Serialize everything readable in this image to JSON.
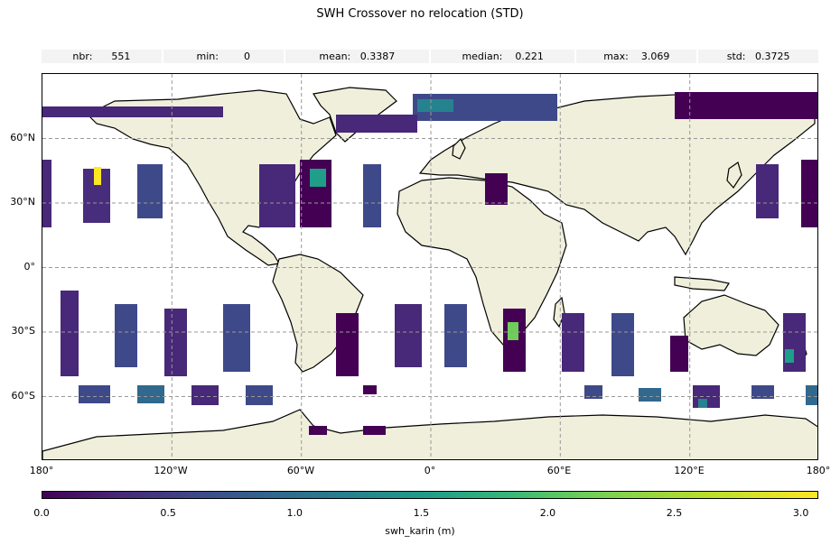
{
  "title": "SWH Crossover no relocation (STD)",
  "stats": [
    {
      "label": "nbr:",
      "value": "551"
    },
    {
      "label": "min:",
      "value": "0"
    },
    {
      "label": "mean:",
      "value": "0.3387"
    },
    {
      "label": "median:",
      "value": "0.221"
    },
    {
      "label": "max:",
      "value": "3.069"
    },
    {
      "label": "std:",
      "value": "0.3725"
    }
  ],
  "map": {
    "lat_labels": [
      "60°N",
      "30°N",
      "0°",
      "30°S",
      "60°S"
    ],
    "lon_labels": [
      "180°",
      "120°W",
      "60°W",
      "0°",
      "60°E",
      "120°E",
      "180°"
    ],
    "land_color": "#efefdb",
    "grid": "dashed"
  },
  "colorbar": {
    "ticks": [
      "0.0",
      "0.5",
      "1.0",
      "1.5",
      "2.0",
      "2.5",
      "3.0"
    ],
    "tick_values": [
      0.0,
      0.5,
      1.0,
      1.5,
      2.0,
      2.5,
      3.0
    ],
    "range": [
      0,
      3.069
    ],
    "label": "swh_karin (m)",
    "colormap": "viridis"
  }
}
